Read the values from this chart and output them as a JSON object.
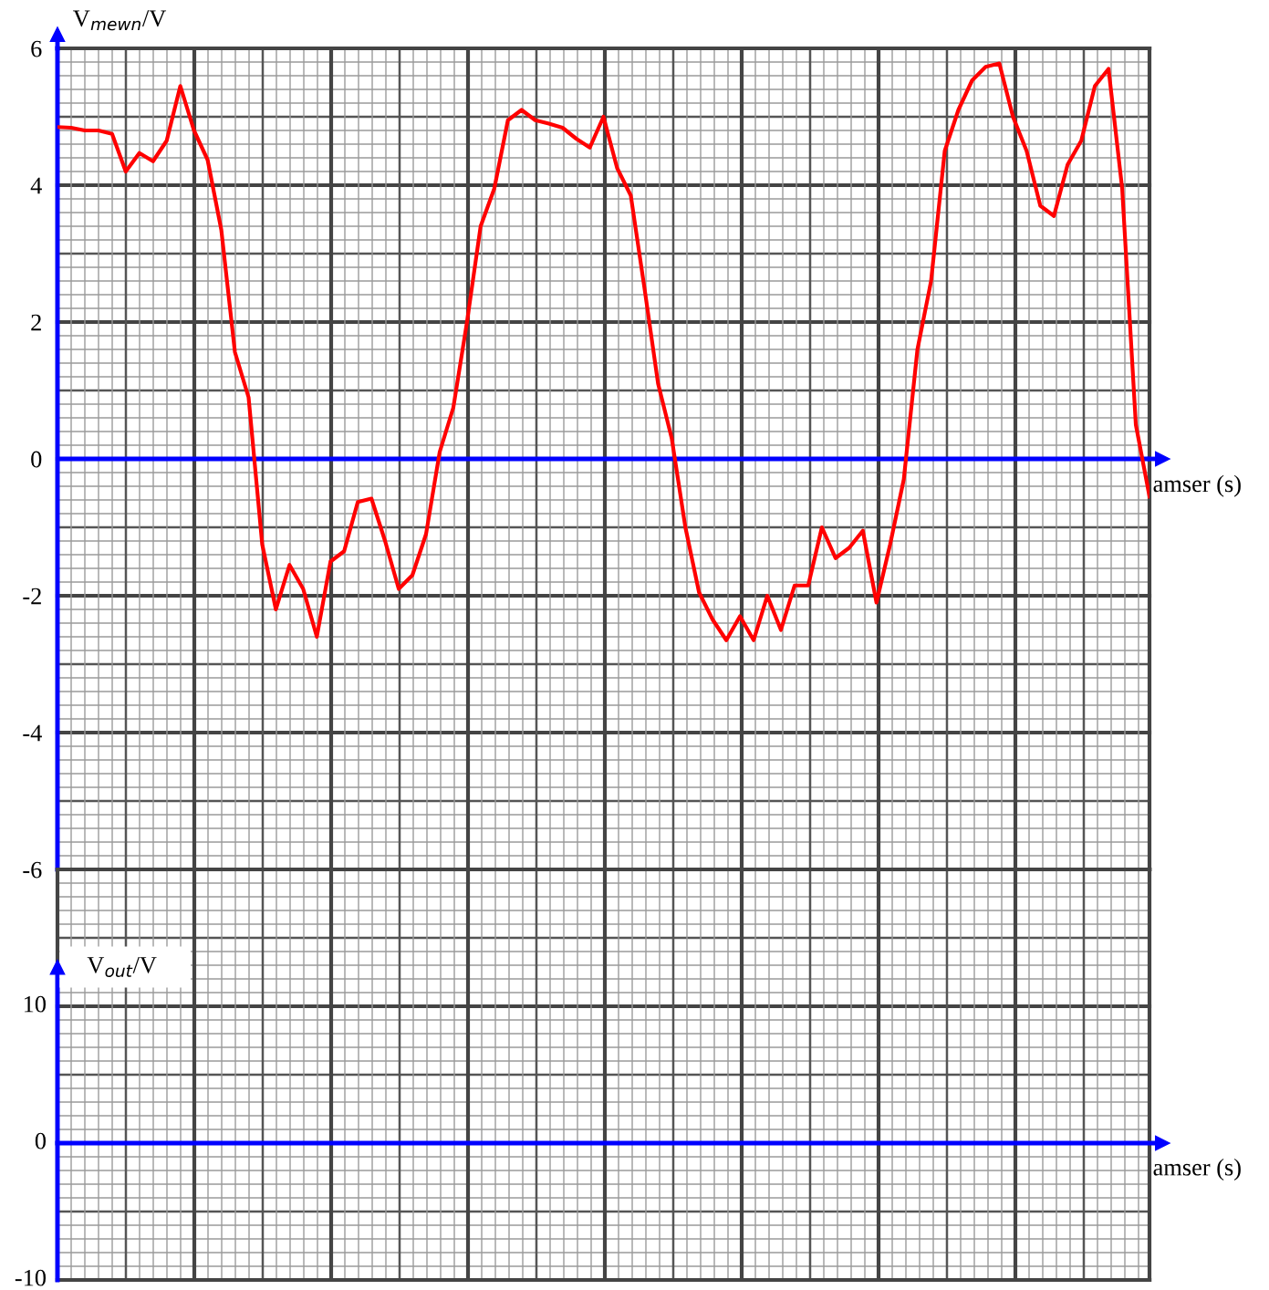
{
  "chart_data": [
    {
      "type": "line",
      "xlabel": "amser (s)",
      "ylabel": "V$_{mewn}$/V",
      "grid": true,
      "tick_labels": "y",
      "categories": [
        null,
        null,
        null,
        null,
        null,
        null,
        null,
        null,
        null,
        null,
        null,
        null,
        null,
        null,
        null,
        null,
        null,
        null,
        null,
        null,
        null,
        null,
        null,
        null,
        null,
        null,
        null,
        null,
        null,
        null,
        null,
        null,
        null,
        null,
        null,
        null,
        null,
        null,
        null,
        null,
        null,
        null,
        null,
        null,
        null,
        null,
        null,
        null,
        null,
        null,
        null,
        null,
        null,
        null,
        null,
        null,
        null,
        null,
        null,
        null,
        null,
        null,
        null,
        null,
        null,
        null,
        null,
        null,
        null,
        null,
        null,
        null,
        null,
        null,
        null,
        null,
        null,
        null,
        null,
        null,
        null
      ],
      "ylim": [
        -6,
        6
      ],
      "yticks": [
        -6,
        -4,
        -2,
        0,
        2,
        4,
        6
      ],
      "ref_lines": [
        {
          "axis": "y",
          "value": 0,
          "color": "#0000ff"
        }
      ],
      "series": [
        {
          "color": "#ff0000",
          "values": [
            4.85,
            4.84,
            4.8,
            4.8,
            4.75,
            4.2,
            4.47,
            4.35,
            4.65,
            5.45,
            4.8,
            4.37,
            3.35,
            1.56,
            0.9,
            -1.25,
            -2.2,
            -1.55,
            -1.9,
            -2.6,
            -1.5,
            -1.35,
            -0.63,
            -0.58,
            -1.2,
            -1.9,
            -1.7,
            -1.1,
            0.1,
            0.75,
            2.0,
            3.4,
            3.95,
            4.95,
            5.1,
            4.95,
            4.9,
            4.84,
            4.68,
            4.55,
            5.0,
            4.25,
            3.85,
            2.5,
            1.1,
            0.3,
            -1.0,
            -1.95,
            -2.35,
            -2.65,
            -2.3,
            -2.65,
            -2.0,
            -2.5,
            -1.85,
            -1.85,
            -1.0,
            -1.45,
            -1.3,
            -1.05,
            -2.1,
            -1.25,
            -0.3,
            1.6,
            2.6,
            4.5,
            5.1,
            5.53,
            5.73,
            5.78,
            5.0,
            4.5,
            3.7,
            3.55,
            4.3,
            4.65,
            5.45,
            5.7,
            3.95,
            0.5,
            -0.55
          ]
        }
      ]
    },
    {
      "type": "other",
      "xlabel": "amser (s)",
      "ylabel": "V$_{out}$/V",
      "annotations": [
        "10",
        "0",
        "-10"
      ]
    }
  ]
}
